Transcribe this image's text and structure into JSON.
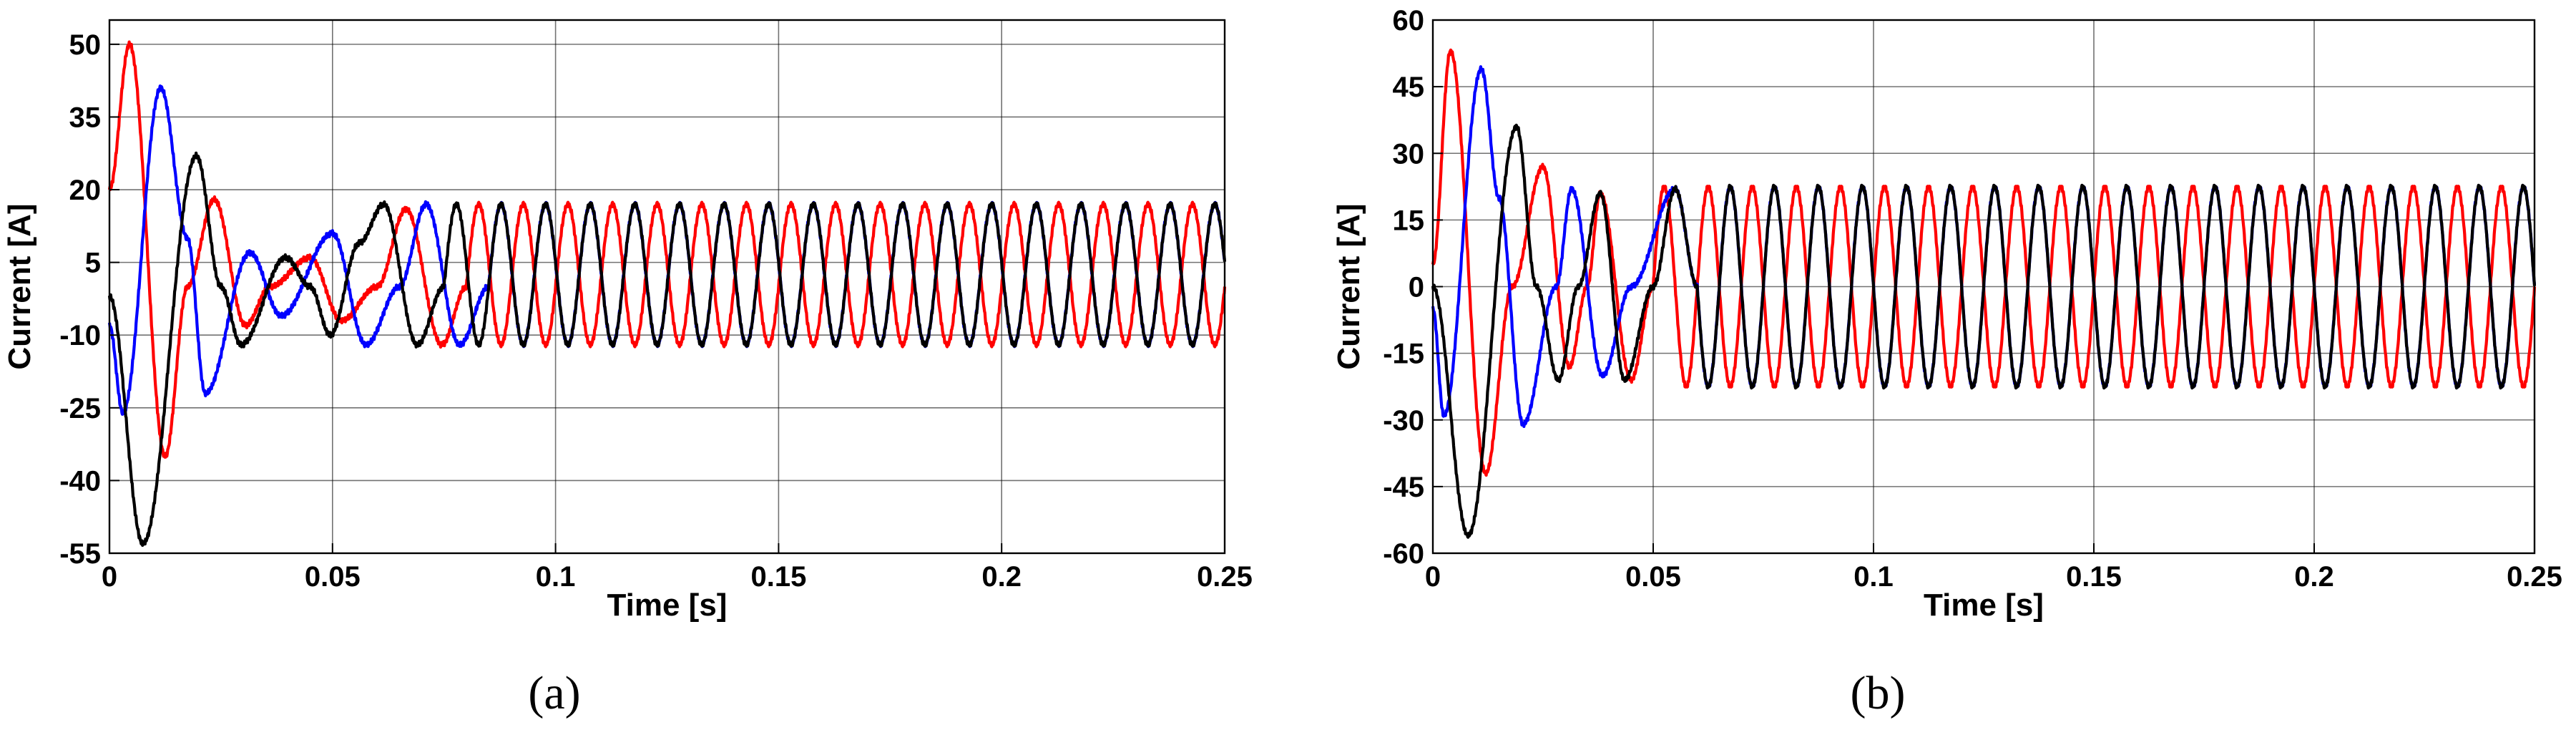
{
  "chart_data": [
    {
      "type": "line",
      "caption": "(a)",
      "xlabel": "Time [s]",
      "ylabel": "Current [A]",
      "xlim": [
        0,
        0.25
      ],
      "ylim": [
        -55,
        55
      ],
      "xticks": [
        0,
        0.05,
        0.1,
        0.15,
        0.2,
        0.25
      ],
      "xtick_labels": [
        "0",
        "0.05",
        "0.1",
        "0.15",
        "0.2",
        "0.25"
      ],
      "yticks": [
        50,
        35,
        20,
        5,
        -10,
        -25,
        -40,
        -55
      ],
      "ytick_labels": [
        "50",
        "35",
        "20",
        "5",
        "-10",
        "-25",
        "-40",
        "-55"
      ],
      "grid": true,
      "steady_amplitude": 14.5,
      "steady_offset": 2.5,
      "frequency_hz": 100,
      "series": [
        {
          "color": "#ff0000",
          "points": [
            [
              0,
              20
            ],
            [
              0.0045,
              50
            ],
            [
              0.0125,
              -35
            ],
            [
              0.0175,
              0
            ],
            [
              0.0235,
              18
            ],
            [
              0.0305,
              -8
            ],
            [
              0.036,
              0
            ],
            [
              0.045,
              6
            ],
            [
              0.052,
              -7
            ],
            [
              0.06,
              0
            ],
            [
              0.0665,
              16
            ],
            [
              0.0745,
              -12
            ],
            [
              0.08,
              0
            ]
          ]
        },
        {
          "color": "#0000ff",
          "points": [
            [
              0,
              -8
            ],
            [
              0.003,
              -26
            ],
            [
              0.0115,
              41
            ],
            [
              0.0175,
              10
            ],
            [
              0.0215,
              -22
            ],
            [
              0.0315,
              7
            ],
            [
              0.0385,
              -6
            ],
            [
              0.05,
              11
            ],
            [
              0.0575,
              -12
            ],
            [
              0.065,
              0
            ],
            [
              0.071,
              17
            ],
            [
              0.0785,
              -12
            ],
            [
              0.085,
              0
            ]
          ]
        },
        {
          "color": "#000000",
          "points": [
            [
              0,
              -2
            ],
            [
              0.0075,
              -53
            ],
            [
              0.0195,
              27
            ],
            [
              0.025,
              0
            ],
            [
              0.0295,
              -12
            ],
            [
              0.0395,
              6
            ],
            [
              0.045,
              0
            ],
            [
              0.0495,
              -10
            ],
            [
              0.056,
              9
            ],
            [
              0.0615,
              17
            ],
            [
              0.069,
              -12
            ],
            [
              0.075,
              0
            ]
          ]
        }
      ]
    },
    {
      "type": "line",
      "caption": "(b)",
      "xlabel": "Time [s]",
      "ylabel": "Current [A]",
      "xlim": [
        0,
        0.25
      ],
      "ylim": [
        -60,
        60
      ],
      "xticks": [
        0,
        0.05,
        0.1,
        0.15,
        0.2,
        0.25
      ],
      "xtick_labels": [
        "0",
        "0.05",
        "0.1",
        "0.15",
        "0.2",
        "0.25"
      ],
      "yticks": [
        60,
        45,
        30,
        15,
        0,
        -15,
        -30,
        -45,
        -60
      ],
      "ytick_labels": [
        "60",
        "45",
        "30",
        "15",
        "0",
        "-15",
        "-30",
        "-45",
        "-60"
      ],
      "grid": true,
      "steady_amplitude": 22.5,
      "steady_offset": 0,
      "frequency_hz": 100,
      "series": [
        {
          "color": "#ff0000",
          "points": [
            [
              0,
              5
            ],
            [
              0.004,
              53
            ],
            [
              0.012,
              -42
            ],
            [
              0.018,
              0
            ],
            [
              0.025,
              27
            ],
            [
              0.031,
              -18
            ],
            [
              0.035,
              0
            ],
            [
              0.038,
              21
            ],
            [
              0.045,
              -21
            ],
            [
              0.05,
              0
            ]
          ]
        },
        {
          "color": "#0000ff",
          "points": [
            [
              0,
              -5
            ],
            [
              0.0025,
              -29
            ],
            [
              0.011,
              49
            ],
            [
              0.015,
              20
            ],
            [
              0.0205,
              -31
            ],
            [
              0.028,
              0
            ],
            [
              0.0315,
              22
            ],
            [
              0.0385,
              -20
            ],
            [
              0.045,
              0
            ],
            [
              0.055,
              22
            ],
            [
              0.06,
              0
            ]
          ]
        },
        {
          "color": "#000000",
          "points": [
            [
              0,
              0
            ],
            [
              0.008,
              -56
            ],
            [
              0.019,
              36
            ],
            [
              0.0235,
              0
            ],
            [
              0.0285,
              -21
            ],
            [
              0.033,
              0
            ],
            [
              0.038,
              21
            ],
            [
              0.0435,
              -21
            ],
            [
              0.05,
              0
            ],
            [
              0.055,
              22
            ],
            [
              0.06,
              0
            ]
          ]
        }
      ]
    }
  ]
}
